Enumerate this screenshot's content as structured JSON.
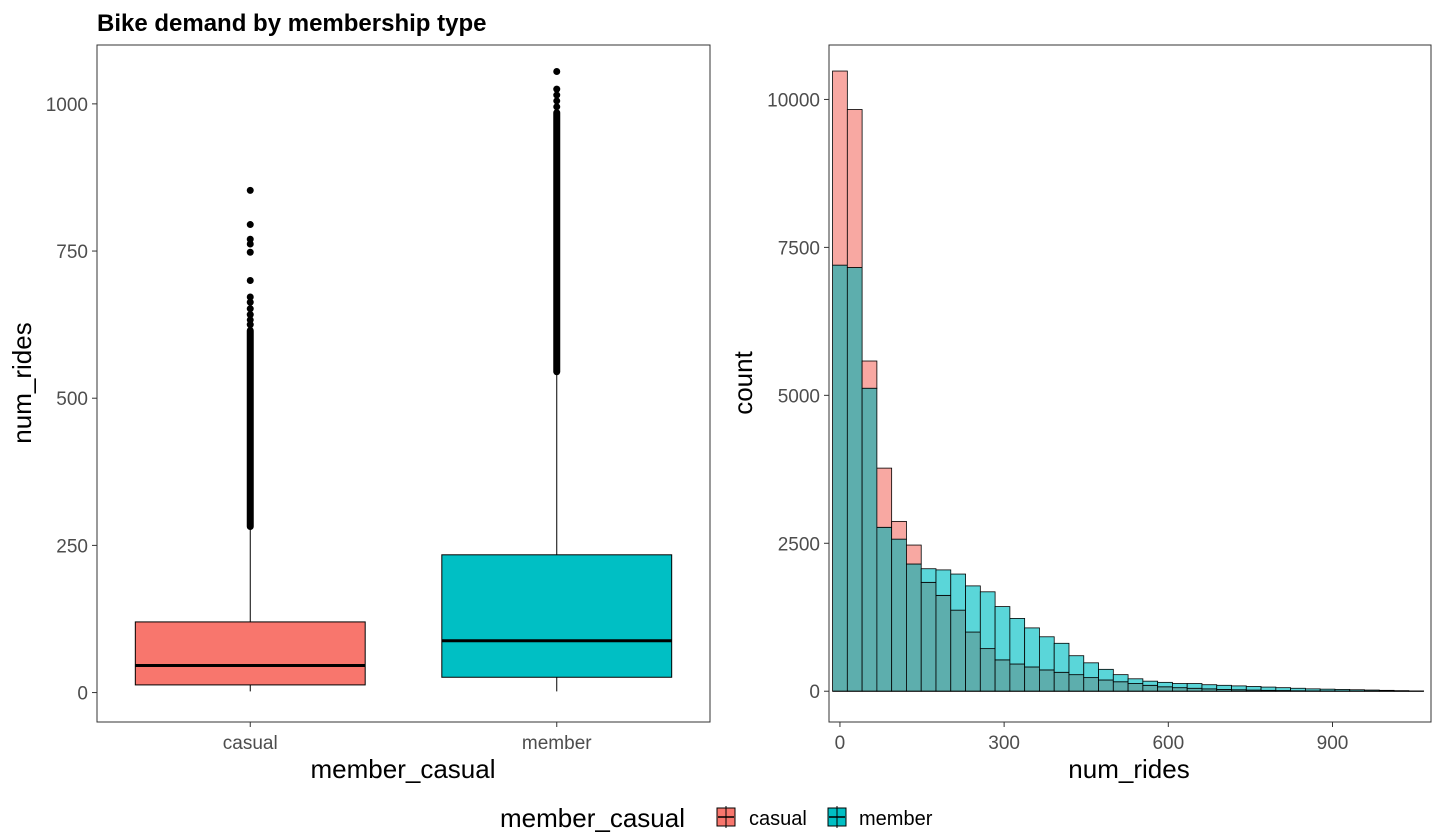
{
  "title": "Bike demand by membership type",
  "colors": {
    "casual": "#F8766D",
    "member": "#00BFC4"
  },
  "legend": {
    "title": "member_casual",
    "items": [
      {
        "label": "casual",
        "color": "#F8766D"
      },
      {
        "label": "member",
        "color": "#00BFC4"
      }
    ]
  },
  "chart_data": [
    {
      "type": "box",
      "xlabel": "member_casual",
      "ylabel": "num_rides",
      "categories": [
        "casual",
        "member"
      ],
      "ylim": [
        -50,
        1100
      ],
      "yticks": [
        0,
        250,
        500,
        750,
        1000
      ],
      "boxes": [
        {
          "name": "casual",
          "min": 2,
          "q1": 13,
          "median": 46,
          "q3": 120,
          "whisker_high": 280,
          "outlier_band": [
            282,
            615
          ],
          "outliers": [
            625,
            633,
            642,
            652,
            663,
            672,
            700,
            748,
            762,
            770,
            795,
            853
          ]
        },
        {
          "name": "member",
          "min": 2,
          "q1": 26,
          "median": 88,
          "q3": 234,
          "whisker_high": 542,
          "outlier_band": [
            545,
            985
          ],
          "outliers": [
            995,
            1005,
            1015,
            1025,
            1055
          ]
        }
      ]
    },
    {
      "type": "histogram",
      "xlabel": "num_rides",
      "ylabel": "count",
      "xlim": [
        -20,
        1080
      ],
      "ylim": [
        -520,
        10920
      ],
      "xticks": [
        0,
        300,
        600,
        900
      ],
      "yticks": [
        0,
        2500,
        5000,
        7500,
        10000
      ],
      "bin_width": 27,
      "bin_start": -13.5,
      "grid": false,
      "series": [
        {
          "name": "casual",
          "values": [
            10480,
            9830,
            5580,
            3770,
            2870,
            2470,
            1840,
            1620,
            1370,
            1000,
            720,
            530,
            460,
            410,
            360,
            320,
            280,
            230,
            190,
            160,
            130,
            100,
            75,
            60,
            50,
            40,
            30,
            25,
            20,
            15,
            12,
            8,
            6,
            5,
            4,
            3,
            2,
            2,
            1,
            1
          ]
        },
        {
          "name": "member",
          "values": [
            7200,
            7160,
            5120,
            2770,
            2570,
            2150,
            2070,
            2050,
            1980,
            1780,
            1680,
            1430,
            1230,
            1070,
            920,
            810,
            600,
            480,
            370,
            280,
            210,
            170,
            150,
            130,
            130,
            110,
            100,
            90,
            80,
            70,
            60,
            50,
            40,
            35,
            30,
            25,
            20,
            15,
            10,
            5
          ]
        }
      ]
    }
  ]
}
